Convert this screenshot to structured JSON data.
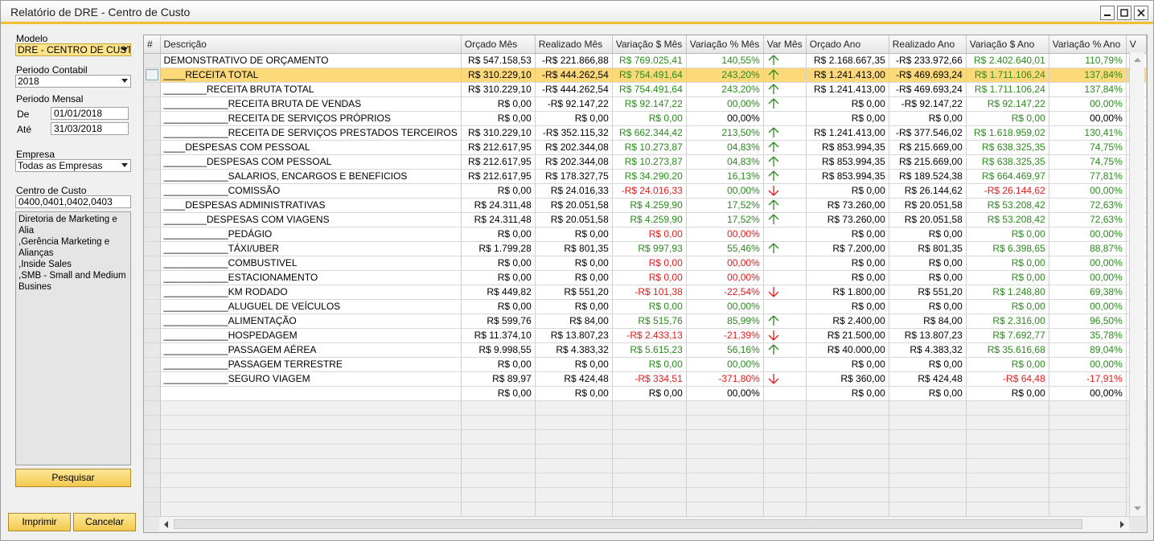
{
  "window": {
    "title": "Relatório de DRE - Centro de Custo",
    "minimize_icon": "minimize-icon",
    "maximize_icon": "maximize-icon",
    "close_icon": "close-icon",
    "accent": "#f0be31"
  },
  "filters": {
    "modelo_label": "Modelo",
    "modelo_value": "DRE - CENTRO DE CUSTO",
    "periodo_contabil_label": "Periodo Contabil",
    "periodo_contabil_value": "2018",
    "periodo_mensal_label": "Periodo Mensal",
    "de_label": "De",
    "de_value": "01/01/2018",
    "ate_label": "Até",
    "ate_value": "31/03/2018",
    "empresa_label": "Empresa",
    "empresa_value": "Todas as Empresas",
    "centro_custo_label": "Centro de Custo",
    "centro_custo_value": "0400,0401,0402,0403",
    "centro_custo_list": [
      "Diretoria de  Marketing e Alia",
      ",Gerência Marketing e Alianças",
      ",Inside Sales",
      ",SMB - Small and Medium Busines"
    ],
    "search_button": "Pesquisar"
  },
  "footer": {
    "print_button": "Imprimir",
    "cancel_button": "Cancelar"
  },
  "grid": {
    "columns": [
      "#",
      "Descrição",
      "Orçado Mês",
      "Realizado Mês",
      "Variação $ Mês",
      "Variação % Mês",
      "Var Mês",
      "Orçado Ano",
      "Realizado Ano",
      "Variação $ Ano",
      "Variação % Ano",
      "V"
    ],
    "rows": [
      {
        "desc": "DEMONSTRATIVO DE ORÇAMENTO",
        "om": "R$ 547.158,53",
        "rm": "-R$ 221.866,88",
        "vm": "R$ 769.025,41",
        "vmc": "green",
        "pm": "140,55%",
        "pmc": "green",
        "am": "up",
        "oa": "R$ 2.168.667,35",
        "ra": "-R$ 233.972,66",
        "va": "R$ 2.402.640,01",
        "vac": "green",
        "pa": "110,79%",
        "pac": "green",
        "aa": "up"
      },
      {
        "desc": "____RECEITA TOTAL",
        "om": "R$ 310.229,10",
        "rm": "-R$ 444.262,54",
        "vm": "R$ 754.491,64",
        "vmc": "green",
        "pm": "243,20%",
        "pmc": "green",
        "am": "up",
        "oa": "R$ 1.241.413,00",
        "ra": "-R$ 469.693,24",
        "va": "R$ 1.711.106,24",
        "vac": "green",
        "pa": "137,84%",
        "pac": "green",
        "aa": "up",
        "selected": true
      },
      {
        "desc": "________RECEITA BRUTA TOTAL",
        "om": "R$ 310.229,10",
        "rm": "-R$ 444.262,54",
        "vm": "R$ 754.491,64",
        "vmc": "green",
        "pm": "243,20%",
        "pmc": "green",
        "am": "up",
        "oa": "R$ 1.241.413,00",
        "ra": "-R$ 469.693,24",
        "va": "R$ 1.711.106,24",
        "vac": "green",
        "pa": "137,84%",
        "pac": "green",
        "aa": "up"
      },
      {
        "desc": "____________RECEITA BRUTA DE VENDAS",
        "om": "R$ 0,00",
        "rm": "-R$ 92.147,22",
        "vm": "R$ 92.147,22",
        "vmc": "green",
        "pm": "00,00%",
        "pmc": "green",
        "am": "up",
        "oa": "R$ 0,00",
        "ra": "-R$ 92.147,22",
        "va": "R$ 92.147,22",
        "vac": "green",
        "pa": "00,00%",
        "pac": "green",
        "aa": "up"
      },
      {
        "desc": "____________RECEITA DE SERVIÇOS PRÓPRIOS",
        "om": "R$ 0,00",
        "rm": "R$ 0,00",
        "vm": "R$ 0,00",
        "vmc": "green",
        "pm": "00,00%",
        "pmc": "dark",
        "am": "",
        "oa": "R$ 0,00",
        "ra": "R$ 0,00",
        "va": "R$ 0,00",
        "vac": "green",
        "pa": "00,00%",
        "pac": "dark",
        "aa": ""
      },
      {
        "desc": "____________RECEITA DE SERVIÇOS PRESTADOS TERCEIROS",
        "om": "R$ 310.229,10",
        "rm": "-R$ 352.115,32",
        "vm": "R$ 662.344,42",
        "vmc": "green",
        "pm": "213,50%",
        "pmc": "green",
        "am": "up",
        "oa": "R$ 1.241.413,00",
        "ra": "-R$ 377.546,02",
        "va": "R$ 1.618.959,02",
        "vac": "green",
        "pa": "130,41%",
        "pac": "green",
        "aa": "up"
      },
      {
        "desc": "____DESPESAS COM PESSOAL",
        "om": "R$ 212.617,95",
        "rm": "R$ 202.344,08",
        "vm": "R$ 10.273,87",
        "vmc": "green",
        "pm": "04,83%",
        "pmc": "green",
        "am": "up",
        "oa": "R$ 853.994,35",
        "ra": "R$ 215.669,00",
        "va": "R$ 638.325,35",
        "vac": "green",
        "pa": "74,75%",
        "pac": "green",
        "aa": "up"
      },
      {
        "desc": "________DESPESAS COM PESSOAL",
        "om": "R$ 212.617,95",
        "rm": "R$ 202.344,08",
        "vm": "R$ 10.273,87",
        "vmc": "green",
        "pm": "04,83%",
        "pmc": "green",
        "am": "up",
        "oa": "R$ 853.994,35",
        "ra": "R$ 215.669,00",
        "va": "R$ 638.325,35",
        "vac": "green",
        "pa": "74,75%",
        "pac": "green",
        "aa": "up"
      },
      {
        "desc": "____________SALARIOS, ENCARGOS E BENEFICIOS",
        "om": "R$ 212.617,95",
        "rm": "R$ 178.327,75",
        "vm": "R$ 34.290,20",
        "vmc": "green",
        "pm": "16,13%",
        "pmc": "green",
        "am": "up",
        "oa": "R$ 853.994,35",
        "ra": "R$ 189.524,38",
        "va": "R$ 664.469,97",
        "vac": "green",
        "pa": "77,81%",
        "pac": "green",
        "aa": "up"
      },
      {
        "desc": "____________COMISSÃO",
        "om": "R$ 0,00",
        "rm": "R$ 24.016,33",
        "vm": "-R$ 24.016,33",
        "vmc": "red",
        "pm": "00,00%",
        "pmc": "green",
        "am": "down",
        "oa": "R$ 0,00",
        "ra": "R$ 26.144,62",
        "va": "-R$ 26.144,62",
        "vac": "red",
        "pa": "00,00%",
        "pac": "green",
        "aa": "down"
      },
      {
        "desc": "____DESPESAS ADMINISTRATIVAS",
        "om": "R$ 24.311,48",
        "rm": "R$ 20.051,58",
        "vm": "R$ 4.259,90",
        "vmc": "green",
        "pm": "17,52%",
        "pmc": "green",
        "am": "up",
        "oa": "R$ 73.260,00",
        "ra": "R$ 20.051,58",
        "va": "R$ 53.208,42",
        "vac": "green",
        "pa": "72,63%",
        "pac": "green",
        "aa": "up"
      },
      {
        "desc": "________DESPESAS COM VIAGENS",
        "om": "R$ 24.311,48",
        "rm": "R$ 20.051,58",
        "vm": "R$ 4.259,90",
        "vmc": "green",
        "pm": "17,52%",
        "pmc": "green",
        "am": "up",
        "oa": "R$ 73.260,00",
        "ra": "R$ 20.051,58",
        "va": "R$ 53.208,42",
        "vac": "green",
        "pa": "72,63%",
        "pac": "green",
        "aa": "up"
      },
      {
        "desc": "____________PEDÁGIO",
        "om": "R$ 0,00",
        "rm": "R$ 0,00",
        "vm": "R$ 0,00",
        "vmc": "red",
        "pm": "00,00%",
        "pmc": "red",
        "am": "",
        "oa": "R$ 0,00",
        "ra": "R$ 0,00",
        "va": "R$ 0,00",
        "vac": "green",
        "pa": "00,00%",
        "pac": "green",
        "aa": ""
      },
      {
        "desc": "____________TÁXI/UBER",
        "om": "R$ 1.799,28",
        "rm": "R$ 801,35",
        "vm": "R$ 997,93",
        "vmc": "green",
        "pm": "55,46%",
        "pmc": "green",
        "am": "up",
        "oa": "R$ 7.200,00",
        "ra": "R$ 801,35",
        "va": "R$ 6.398,65",
        "vac": "green",
        "pa": "88,87%",
        "pac": "green",
        "aa": "up"
      },
      {
        "desc": "____________COMBUSTIVEL",
        "om": "R$ 0,00",
        "rm": "R$ 0,00",
        "vm": "R$ 0,00",
        "vmc": "red",
        "pm": "00,00%",
        "pmc": "red",
        "am": "",
        "oa": "R$ 0,00",
        "ra": "R$ 0,00",
        "va": "R$ 0,00",
        "vac": "green",
        "pa": "00,00%",
        "pac": "green",
        "aa": ""
      },
      {
        "desc": "____________ESTACIONAMENTO",
        "om": "R$ 0,00",
        "rm": "R$ 0,00",
        "vm": "R$ 0,00",
        "vmc": "red",
        "pm": "00,00%",
        "pmc": "red",
        "am": "",
        "oa": "R$ 0,00",
        "ra": "R$ 0,00",
        "va": "R$ 0,00",
        "vac": "green",
        "pa": "00,00%",
        "pac": "green",
        "aa": ""
      },
      {
        "desc": "____________KM RODADO",
        "om": "R$ 449,82",
        "rm": "R$ 551,20",
        "vm": "-R$ 101,38",
        "vmc": "red",
        "pm": "-22,54%",
        "pmc": "red",
        "am": "down",
        "oa": "R$ 1.800,00",
        "ra": "R$ 551,20",
        "va": "R$ 1.248,80",
        "vac": "green",
        "pa": "69,38%",
        "pac": "green",
        "aa": "up"
      },
      {
        "desc": "____________ALUGUEL DE VEÍCULOS",
        "om": "R$ 0,00",
        "rm": "R$ 0,00",
        "vm": "R$ 0,00",
        "vmc": "green",
        "pm": "00,00%",
        "pmc": "green",
        "am": "",
        "oa": "R$ 0,00",
        "ra": "R$ 0,00",
        "va": "R$ 0,00",
        "vac": "green",
        "pa": "00,00%",
        "pac": "green",
        "aa": ""
      },
      {
        "desc": "____________ALIMENTAÇÃO",
        "om": "R$ 599,76",
        "rm": "R$ 84,00",
        "vm": "R$ 515,76",
        "vmc": "green",
        "pm": "85,99%",
        "pmc": "green",
        "am": "up",
        "oa": "R$ 2.400,00",
        "ra": "R$ 84,00",
        "va": "R$ 2.316,00",
        "vac": "green",
        "pa": "96,50%",
        "pac": "green",
        "aa": "up"
      },
      {
        "desc": "____________HOSPEDAGEM",
        "om": "R$ 11.374,10",
        "rm": "R$ 13.807,23",
        "vm": "-R$ 2.433,13",
        "vmc": "red",
        "pm": "-21,39%",
        "pmc": "red",
        "am": "down",
        "oa": "R$ 21.500,00",
        "ra": "R$ 13.807,23",
        "va": "R$ 7.692,77",
        "vac": "green",
        "pa": "35,78%",
        "pac": "green",
        "aa": "up"
      },
      {
        "desc": "____________PASSAGEM AÉREA",
        "om": "R$ 9.998,55",
        "rm": "R$ 4.383,32",
        "vm": "R$ 5.615,23",
        "vmc": "green",
        "pm": "56,16%",
        "pmc": "green",
        "am": "up",
        "oa": "R$ 40.000,00",
        "ra": "R$ 4.383,32",
        "va": "R$ 35.616,68",
        "vac": "green",
        "pa": "89,04%",
        "pac": "green",
        "aa": "up"
      },
      {
        "desc": "____________PASSAGEM TERRESTRE",
        "om": "R$ 0,00",
        "rm": "R$ 0,00",
        "vm": "R$ 0,00",
        "vmc": "green",
        "pm": "00,00%",
        "pmc": "green",
        "am": "",
        "oa": "R$ 0,00",
        "ra": "R$ 0,00",
        "va": "R$ 0,00",
        "vac": "green",
        "pa": "00,00%",
        "pac": "green",
        "aa": ""
      },
      {
        "desc": "____________SEGURO VIAGEM",
        "om": "R$ 89,97",
        "rm": "R$ 424,48",
        "vm": "-R$ 334,51",
        "vmc": "red",
        "pm": "-371,80%",
        "pmc": "red",
        "am": "down",
        "oa": "R$ 360,00",
        "ra": "R$ 424,48",
        "va": "-R$ 64,48",
        "vac": "red",
        "pa": "-17,91%",
        "pac": "red",
        "aa": "down"
      },
      {
        "desc": "",
        "om": "R$ 0,00",
        "rm": "R$ 0,00",
        "vm": "R$ 0,00",
        "vmc": "dark",
        "pm": "00,00%",
        "pmc": "dark",
        "am": "",
        "oa": "R$ 0,00",
        "ra": "R$ 0,00",
        "va": "R$ 0,00",
        "vac": "dark",
        "pa": "00,00%",
        "pac": "dark",
        "aa": ""
      }
    ],
    "empty_rows": 8,
    "colors": {
      "positive": "#2b8a1e",
      "negative": "#e01b1b",
      "selected_row": "#fdd97a"
    }
  }
}
